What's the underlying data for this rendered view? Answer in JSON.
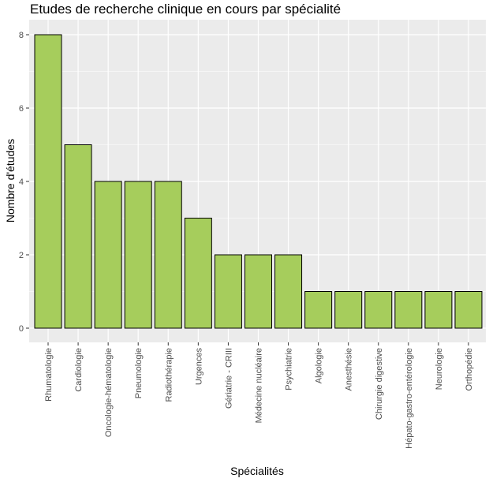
{
  "chart_data": {
    "type": "bar",
    "title": "Etudes de recherche clinique en cours par spécialité",
    "xlabel": "Spécialités",
    "ylabel": "Nombre d'études",
    "categories": [
      "Rhumatologie",
      "Cardiologie",
      "Oncologie-hématologie",
      "Pneumologie",
      "Radiothérapie",
      "Urgences",
      "Gériatrie - CRIII",
      "Médecine nucléaire",
      "Psychiatrie",
      "Algologie",
      "Anesthésie",
      "Chirurgie digestive",
      "Hépato-gastro-entérologie",
      "Neurologie",
      "Orthopédie"
    ],
    "values": [
      8,
      5,
      4,
      4,
      4,
      3,
      2,
      2,
      2,
      1,
      1,
      1,
      1,
      1,
      1
    ],
    "yticks": [
      0,
      2,
      4,
      6,
      8
    ],
    "ylim": [
      -0.4,
      8.4
    ],
    "grid": true,
    "bar_color": "#a6cd5c",
    "panel_color": "#ebebeb"
  }
}
